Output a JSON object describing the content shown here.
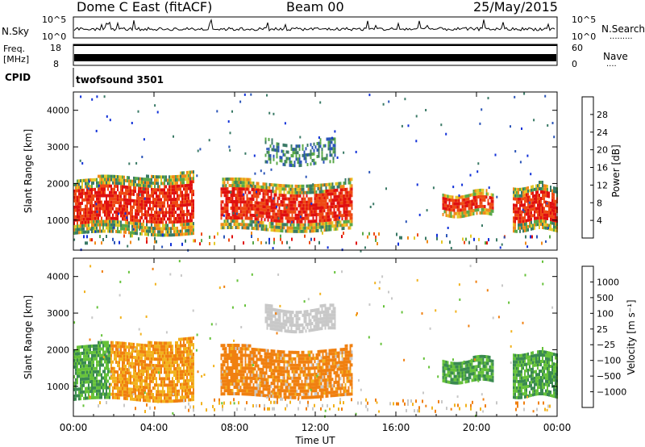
{
  "header": {
    "site": "Dome C East (fitACF)",
    "beam": "Beam 00",
    "date": "25/May/2015"
  },
  "panels": {
    "nsky": {
      "left_label": "N.Sky",
      "right_label": "N.Search",
      "right_dots": ".........",
      "ticks_left": [
        "10^5",
        "10^0"
      ],
      "ticks_right": [
        "10^5",
        "10^0"
      ]
    },
    "freq": {
      "left_label_1": "Freq.",
      "left_label_2": "[MHz]",
      "right_label": "Nave",
      "right_dots": "....",
      "ticks_left": [
        "18",
        "8"
      ],
      "ticks_right": [
        "60",
        "0"
      ]
    },
    "cpid": {
      "label": "CPID",
      "value": "twofsound 3501"
    }
  },
  "chart_data": [
    {
      "type": "heatmap",
      "name": "power",
      "xlabel": "Time UT",
      "ylabel": "Slant Range [km]",
      "yticks": [
        1000,
        2000,
        3000,
        4000
      ],
      "ylim": [
        180,
        4500
      ],
      "xlim_hours": [
        0,
        24
      ],
      "colorbar": {
        "label": "Power [dB]",
        "ticks": [
          4,
          8,
          12,
          16,
          20,
          24,
          28
        ],
        "range": [
          0,
          32
        ],
        "colors": [
          "#1030d8",
          "#2b55b8",
          "#3a7a66",
          "#5aa848",
          "#e4c82a",
          "#f08a1a",
          "#ee4a14",
          "#e01010"
        ]
      },
      "regions": [
        {
          "t0": 0.0,
          "t1": 6.0,
          "r0": 600,
          "r1": 2000,
          "level": "strong"
        },
        {
          "t0": 7.3,
          "t1": 13.8,
          "r0": 700,
          "r1": 2000,
          "level": "strong"
        },
        {
          "t0": 9.5,
          "t1": 13.0,
          "r0": 2500,
          "r1": 3100,
          "level": "weak"
        },
        {
          "t0": 18.3,
          "t1": 20.8,
          "r0": 1100,
          "r1": 1700,
          "level": "medium"
        },
        {
          "t0": 21.8,
          "t1": 24.0,
          "r0": 700,
          "r1": 1900,
          "level": "strong"
        },
        {
          "t0": 0.0,
          "t1": 24.0,
          "r0": 200,
          "r1": 600,
          "level": "sparse"
        }
      ]
    },
    {
      "type": "heatmap",
      "name": "velocity",
      "xlabel": "Time UT",
      "ylabel": "Slant Range [km]",
      "yticks": [
        1000,
        2000,
        3000,
        4000
      ],
      "ylim": [
        180,
        4500
      ],
      "xlim_hours": [
        0,
        24
      ],
      "xticks": [
        "00:00",
        "04:00",
        "08:00",
        "12:00",
        "16:00",
        "20:00",
        "00:00"
      ],
      "colorbar": {
        "label": "Velocity [m s⁻¹]",
        "ticks": [
          "1000",
          "500",
          "100",
          "25",
          "−25",
          "−100",
          "−500",
          "−1000"
        ],
        "colors": [
          "#1838c8",
          "#2a6aa8",
          "#3a8a50",
          "#66c23a",
          "#c8c8c8",
          "#f2b21e",
          "#f08010",
          "#ee4a10",
          "#e01010"
        ]
      },
      "regions": [
        {
          "t0": 0.0,
          "t1": 6.0,
          "r0": 600,
          "r1": 2000,
          "level": "mixed"
        },
        {
          "t0": 7.3,
          "t1": 13.8,
          "r0": 700,
          "r1": 2000,
          "level": "negative"
        },
        {
          "t0": 9.5,
          "t1": 13.0,
          "r0": 2500,
          "r1": 3100,
          "level": "neutral"
        },
        {
          "t0": 18.3,
          "t1": 20.8,
          "r0": 1100,
          "r1": 1700,
          "level": "positive"
        },
        {
          "t0": 21.8,
          "t1": 24.0,
          "r0": 700,
          "r1": 1900,
          "level": "positive"
        },
        {
          "t0": 0.0,
          "t1": 24.0,
          "r0": 200,
          "r1": 600,
          "level": "sparse"
        }
      ]
    }
  ]
}
